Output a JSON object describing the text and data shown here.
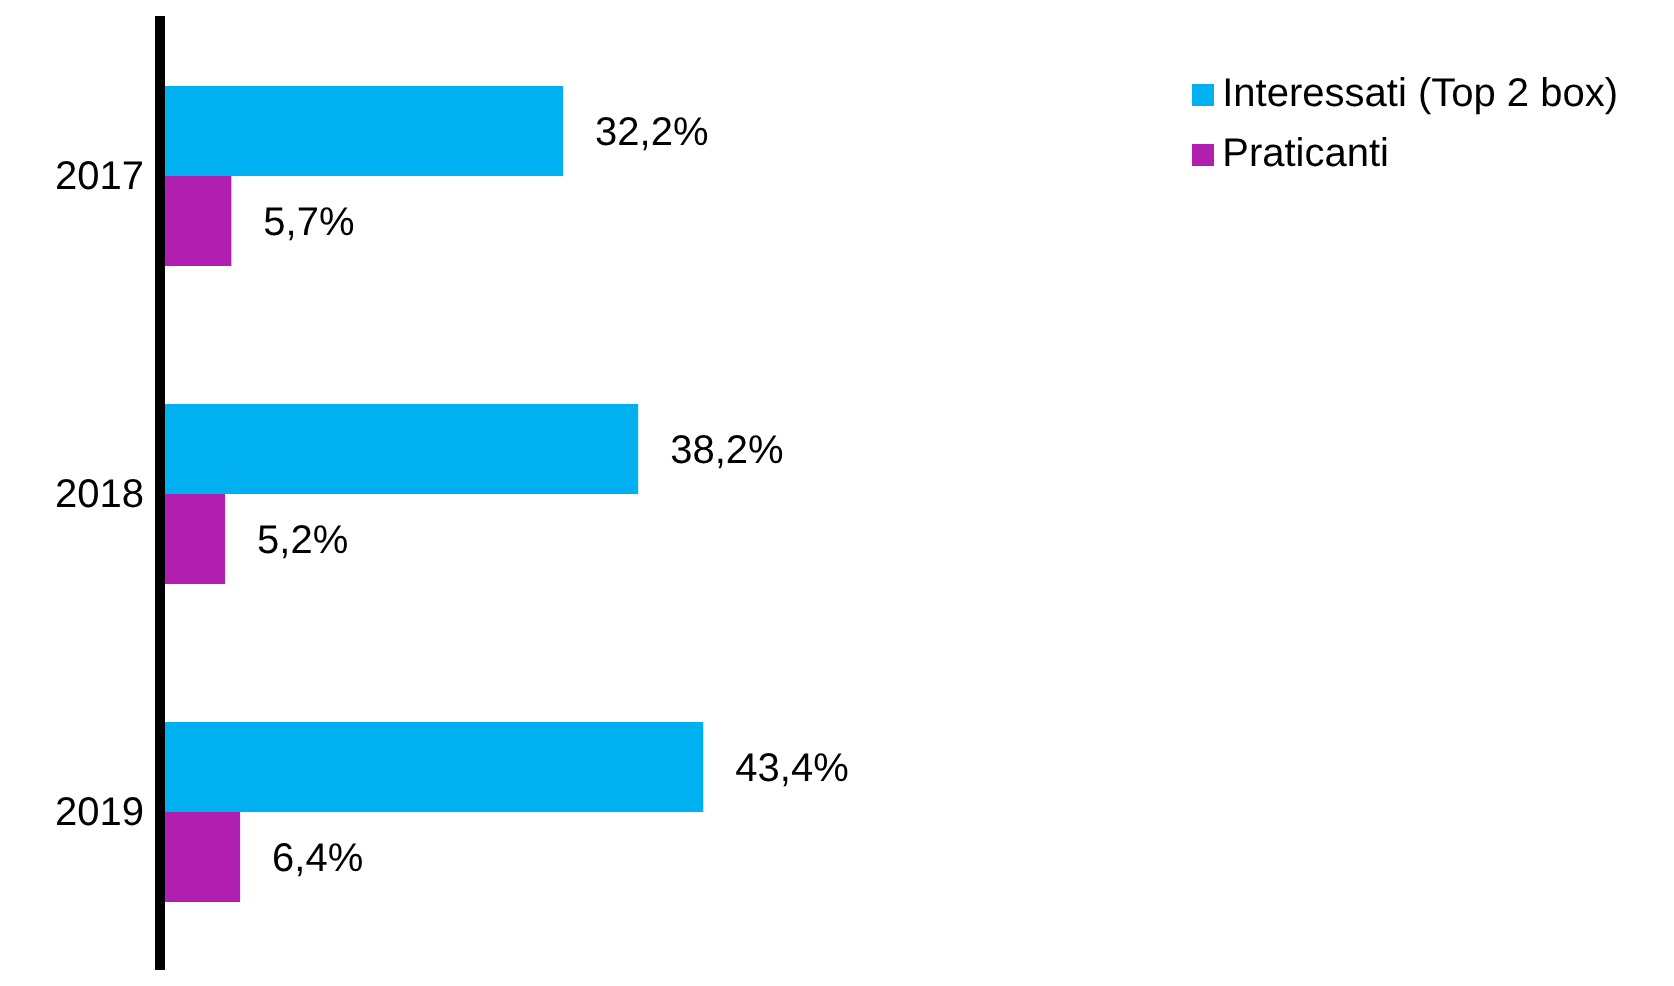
{
  "chart_data": {
    "type": "bar",
    "orientation": "horizontal",
    "categories": [
      "2017",
      "2018",
      "2019"
    ],
    "series": [
      {
        "name": "Interessati (Top 2 box)",
        "color": "#00b0f0",
        "values": [
          32.2,
          38.2,
          43.4
        ],
        "value_labels": [
          "32,2%",
          "38,2%",
          "43,4%"
        ]
      },
      {
        "name": "Praticanti",
        "color": "#b01fb0",
        "values": [
          5.7,
          5.2,
          6.4
        ],
        "value_labels": [
          "5,7%",
          "5,2%",
          "6,4%"
        ]
      }
    ],
    "tick_labels": "y",
    "legend": "top right",
    "grid": false
  }
}
